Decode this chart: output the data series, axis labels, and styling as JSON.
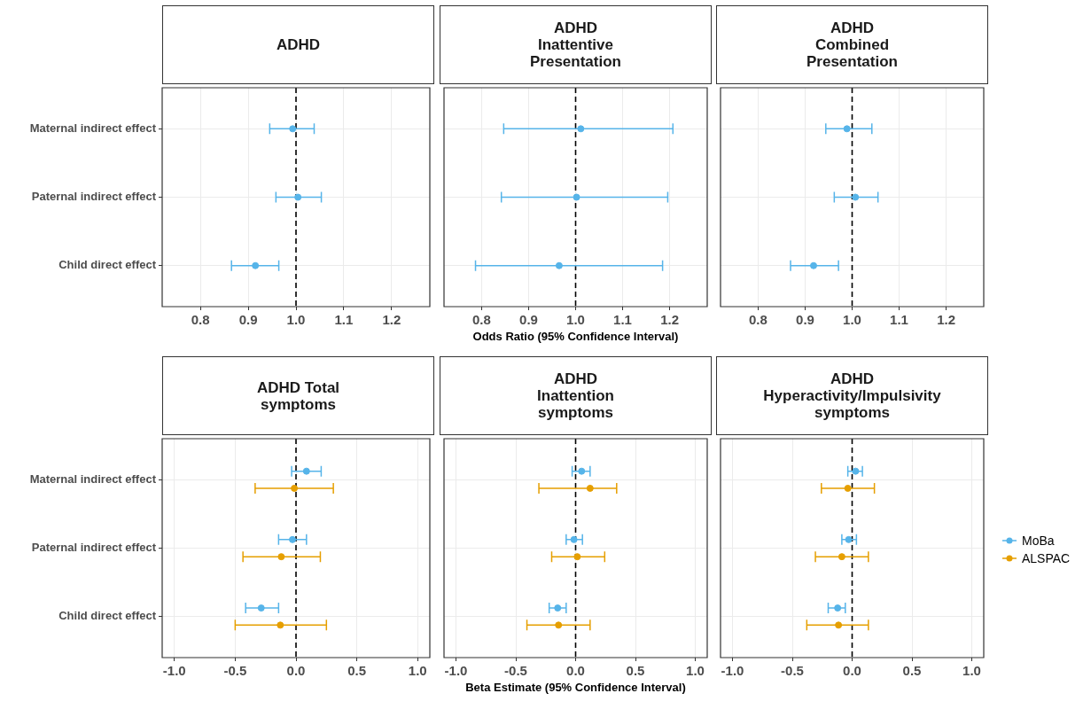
{
  "chart_data": [
    {
      "type": "scatter",
      "title": "ADHD",
      "orientation": "horizontal",
      "marker": "circle",
      "grid": true,
      "categories": [
        "Maternal indirect effect",
        "Paternal indirect effect",
        "Child direct effect"
      ],
      "xlim": [
        0.72,
        1.28
      ],
      "xticks": [
        0.8,
        0.9,
        {
          "value": 1,
          "label": "1.0"
        },
        1.1,
        1.2
      ],
      "ref_lines": [
        {
          "axis": "x",
          "value": 1,
          "line_style": "dashed",
          "color": "#000000"
        }
      ],
      "series": [
        {
          "color": "#56b4e9",
          "values": [
            0.993,
            1.004,
            0.915
          ],
          "errors": [
            [
              0.945,
              1.038
            ],
            [
              0.958,
              1.053
            ],
            [
              0.865,
              0.964
            ]
          ]
        }
      ]
    },
    {
      "type": "scatter",
      "title": "ADHD\nInattentive\nPresentation",
      "xlabel": "Odds Ratio (95% Confidence Interval)",
      "orientation": "horizontal",
      "marker": "circle",
      "grid": true,
      "tick_labels": "x",
      "categories": [
        null,
        null,
        null
      ],
      "xlim": [
        0.72,
        1.28
      ],
      "xticks": [
        0.8,
        0.9,
        {
          "value": 1,
          "label": "1.0"
        },
        1.1,
        1.2
      ],
      "ref_lines": [
        {
          "axis": "x",
          "value": 1,
          "line_style": "dashed",
          "color": "#000000"
        }
      ],
      "series": [
        {
          "color": "#56b4e9",
          "values": [
            1.011,
            1.002,
            0.965
          ],
          "errors": [
            [
              0.847,
              1.207
            ],
            [
              0.842,
              1.196
            ],
            [
              0.787,
              1.185
            ]
          ]
        }
      ]
    },
    {
      "type": "scatter",
      "title": "ADHD\nCombined\nPresentation",
      "orientation": "horizontal",
      "marker": "circle",
      "grid": true,
      "tick_labels": "x",
      "categories": [
        null,
        null,
        null
      ],
      "xlim": [
        0.72,
        1.28
      ],
      "xticks": [
        0.8,
        0.9,
        {
          "value": 1,
          "label": "1.0"
        },
        1.1,
        1.2
      ],
      "ref_lines": [
        {
          "axis": "x",
          "value": 1,
          "line_style": "dashed",
          "color": "#000000"
        }
      ],
      "series": [
        {
          "color": "#56b4e9",
          "values": [
            0.989,
            1.007,
            0.918
          ],
          "errors": [
            [
              0.944,
              1.042
            ],
            [
              0.962,
              1.055
            ],
            [
              0.869,
              0.971
            ]
          ]
        }
      ]
    },
    {
      "type": "scatter",
      "title": "ADHD Total\nsymptoms",
      "orientation": "horizontal",
      "marker": "circle",
      "grid": true,
      "categories": [
        "Maternal indirect effect",
        "Paternal indirect effect",
        "Child direct effect"
      ],
      "xlim": [
        -1.1,
        1.1
      ],
      "xticks": [
        {
          "value": -1,
          "label": "-1.0"
        },
        -0.5,
        {
          "value": 0,
          "label": "0.0"
        },
        0.5,
        {
          "value": 1,
          "label": "1.0"
        }
      ],
      "ref_lines": [
        {
          "axis": "x",
          "value": 0,
          "line_style": "dashed",
          "color": "#000000"
        }
      ],
      "series": [
        {
          "color": "#56b4e9",
          "values": [
            0.086,
            -0.029,
            -0.286
          ],
          "errors": [
            [
              -0.036,
              0.207
            ],
            [
              -0.143,
              0.086
            ],
            [
              -0.414,
              -0.143
            ]
          ]
        },
        {
          "color": "#e69f00",
          "values": [
            -0.014,
            -0.121,
            -0.129
          ],
          "errors": [
            [
              -0.336,
              0.307
            ],
            [
              -0.436,
              0.2
            ],
            [
              -0.5,
              0.25
            ]
          ]
        }
      ]
    },
    {
      "type": "scatter",
      "title": "ADHD\nInattention\nsymptoms",
      "xlabel": "Beta Estimate (95% Confidence Interval)",
      "orientation": "horizontal",
      "marker": "circle",
      "grid": true,
      "tick_labels": "x",
      "categories": [
        null,
        null,
        null
      ],
      "xlim": [
        -1.1,
        1.1
      ],
      "xticks": [
        {
          "value": -1,
          "label": "-1.0"
        },
        -0.5,
        {
          "value": 0,
          "label": "0.0"
        },
        0.5,
        {
          "value": 1,
          "label": "1.0"
        }
      ],
      "ref_lines": [
        {
          "axis": "x",
          "value": 0,
          "line_style": "dashed",
          "color": "#000000"
        }
      ],
      "series": [
        {
          "color": "#56b4e9",
          "values": [
            0.05,
            -0.014,
            -0.15
          ],
          "errors": [
            [
              -0.029,
              0.121
            ],
            [
              -0.079,
              0.057
            ],
            [
              -0.221,
              -0.079
            ]
          ]
        },
        {
          "color": "#e69f00",
          "values": [
            0.121,
            0.014,
            -0.143
          ],
          "errors": [
            [
              -0.307,
              0.343
            ],
            [
              -0.2,
              0.243
            ],
            [
              -0.407,
              0.121
            ]
          ]
        }
      ]
    },
    {
      "type": "scatter",
      "title": "ADHD\nHyperactivity/Impulsivity\nsymptoms",
      "orientation": "horizontal",
      "marker": "circle",
      "grid": true,
      "tick_labels": "x",
      "legend": "right",
      "categories": [
        null,
        null,
        null
      ],
      "xlim": [
        -1.1,
        1.1
      ],
      "xticks": [
        {
          "value": -1,
          "label": "-1.0"
        },
        -0.5,
        {
          "value": 0,
          "label": "0.0"
        },
        0.5,
        {
          "value": 1,
          "label": "1.0"
        }
      ],
      "ref_lines": [
        {
          "axis": "x",
          "value": 0,
          "line_style": "dashed",
          "color": "#000000"
        }
      ],
      "series": [
        {
          "name": "MoBa",
          "color": "#56b4e9",
          "values": [
            0.029,
            -0.029,
            -0.121
          ],
          "errors": [
            [
              -0.036,
              0.086
            ],
            [
              -0.086,
              0.036
            ],
            [
              -0.2,
              -0.057
            ]
          ]
        },
        {
          "name": "ALSPAC",
          "color": "#e69f00",
          "values": [
            -0.036,
            -0.086,
            -0.114
          ],
          "errors": [
            [
              -0.257,
              0.186
            ],
            [
              -0.307,
              0.136
            ],
            [
              -0.379,
              0.136
            ]
          ]
        }
      ]
    }
  ]
}
